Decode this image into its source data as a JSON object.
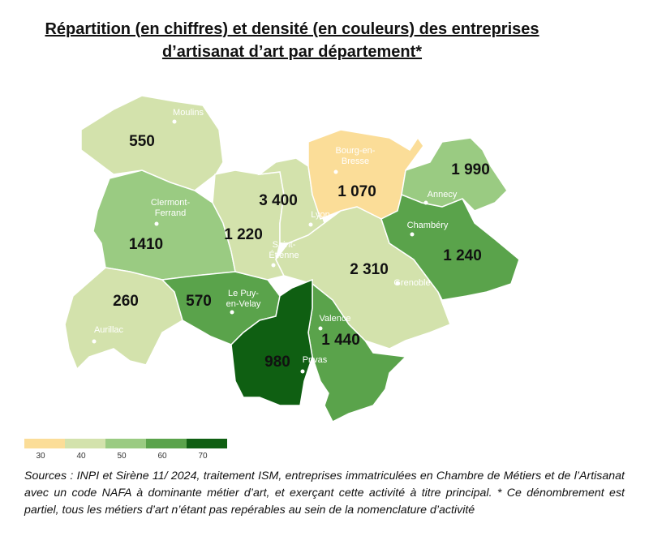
{
  "title": [
    "Répartition (en chiffres) et densité (en couleurs) des entreprises",
    "d’artisanat d’art par département*"
  ],
  "departments": [
    {
      "label": "550",
      "color": "#d3e2ac"
    },
    {
      "label": "1410",
      "color": "#9acb82"
    },
    {
      "label": "260",
      "color": "#d3e2ac"
    },
    {
      "label": "570",
      "color": "#5aa34b"
    },
    {
      "label": "1 220",
      "color": "#d3e2ac"
    },
    {
      "label": "3 400",
      "color": "#d3e2ac"
    },
    {
      "label": "1 070",
      "color": "#fbdd98"
    },
    {
      "label": "2 310",
      "color": "#d3e2ac"
    },
    {
      "label": "1 440",
      "color": "#5aa34b"
    },
    {
      "label": "980",
      "color": "#0f5f12"
    },
    {
      "label": "1 240",
      "color": "#5aa34b"
    },
    {
      "label": "1 990",
      "color": "#9acb82"
    }
  ],
  "cities": [
    [
      "Moulins"
    ],
    [
      "Clermont-",
      "Ferrand"
    ],
    [
      "Aurillac"
    ],
    [
      "Le Puy-",
      "en-Velay"
    ],
    [
      "Saint-",
      "Étienne"
    ],
    [
      "Lyon"
    ],
    [
      "Bourg-en-",
      "Bresse"
    ],
    [
      "Grenoble"
    ],
    [
      "Valence"
    ],
    [
      "Privas"
    ],
    [
      "Chambéry"
    ],
    [
      "Annecy"
    ]
  ],
  "legend": {
    "ticks": [
      30,
      40,
      50,
      60,
      70
    ],
    "colors": [
      "#fbdd98",
      "#d3e2ac",
      "#9acb82",
      "#5aa34b",
      "#0f5f12"
    ]
  },
  "source": "Sources : INPI et Sirène 11/ 2024, traitement ISM, entreprises immatriculées en Chambre de Métiers et de l’Artisanat avec un code NAFA à dominante métier d’art, et exerçant cette activité à titre principal.  * Ce dénombrement est partiel, tous les métiers d’art n’étant pas repérables au sein de la nomenclature d’activité"
}
